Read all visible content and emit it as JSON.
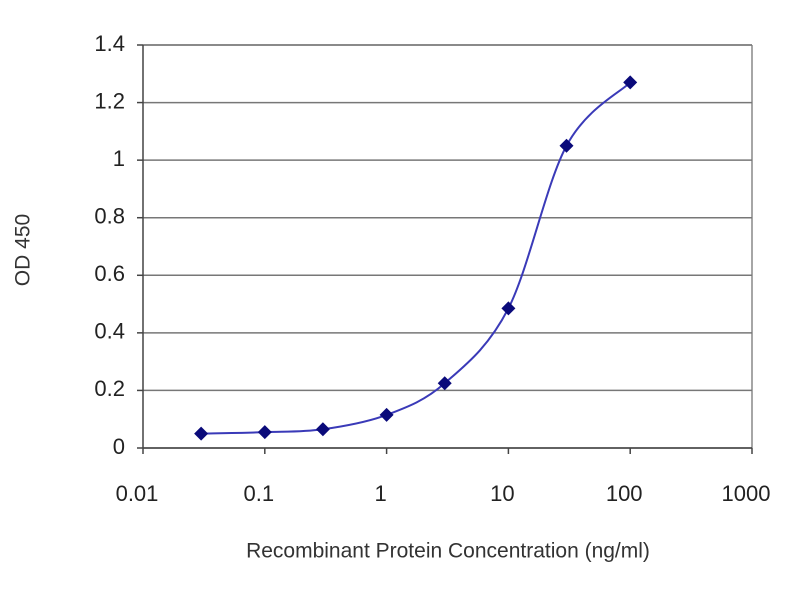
{
  "chart_data": {
    "type": "line",
    "xlabel": "Recombinant Protein Concentration (ng/ml)",
    "ylabel": "OD 450",
    "x": [
      0.03,
      0.1,
      0.3,
      1,
      3,
      10,
      30,
      100
    ],
    "series": [
      {
        "color": "#3a3ab8",
        "marker_color": "#0a0a7a",
        "values": [
          0.05,
          0.055,
          0.065,
          0.115,
          0.225,
          0.485,
          1.05,
          1.27
        ]
      }
    ],
    "xlim": [
      0.01,
      1000
    ],
    "xticks": [
      0.01,
      0.1,
      1,
      10,
      100,
      1000
    ],
    "xscale": "log",
    "ylim": [
      0,
      1.4
    ],
    "yticks": [
      0,
      0.2,
      0.4,
      0.6,
      0.8,
      1,
      1.2,
      1.4
    ],
    "grid": true
  }
}
